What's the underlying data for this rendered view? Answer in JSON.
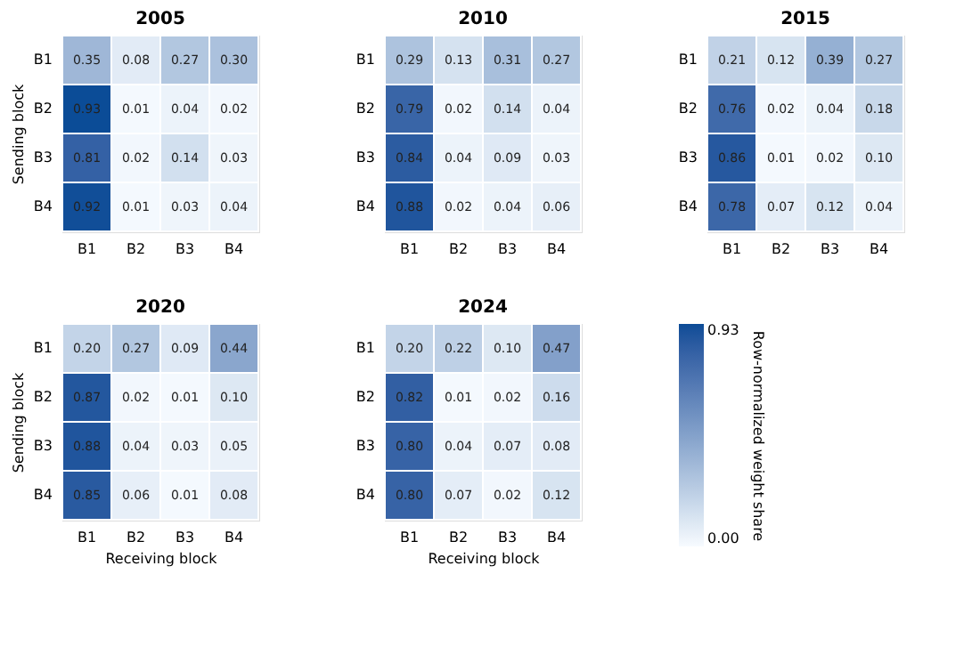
{
  "chart_data": [
    {
      "type": "heatmap",
      "title": "2005",
      "ylabel": "Sending block",
      "categories": [
        "B1",
        "B2",
        "B3",
        "B4"
      ],
      "y_categories": [
        "B1",
        "B2",
        "B3",
        "B4"
      ],
      "cells": [
        [
          0.35,
          0.08,
          0.27,
          0.3
        ],
        [
          0.93,
          0.01,
          0.04,
          0.02
        ],
        [
          0.81,
          0.02,
          0.14,
          0.03
        ],
        [
          0.92,
          0.01,
          0.03,
          0.04
        ]
      ],
      "cell_labels": [
        [
          "0.35",
          "0.08",
          "0.27",
          "0.30"
        ],
        [
          "0.93",
          "0.01",
          "0.04",
          "0.02"
        ],
        [
          "0.81",
          "0.02",
          "0.14",
          "0.03"
        ],
        [
          "0.92",
          "0.01",
          "0.03",
          "0.04"
        ]
      ]
    },
    {
      "type": "heatmap",
      "title": "2010",
      "categories": [
        "B1",
        "B2",
        "B3",
        "B4"
      ],
      "y_categories": [
        "B1",
        "B2",
        "B3",
        "B4"
      ],
      "cells": [
        [
          0.29,
          0.13,
          0.31,
          0.27
        ],
        [
          0.79,
          0.02,
          0.14,
          0.04
        ],
        [
          0.84,
          0.04,
          0.09,
          0.03
        ],
        [
          0.88,
          0.02,
          0.04,
          0.06
        ]
      ],
      "cell_labels": [
        [
          "0.29",
          "0.13",
          "0.31",
          "0.27"
        ],
        [
          "0.79",
          "0.02",
          "0.14",
          "0.04"
        ],
        [
          "0.84",
          "0.04",
          "0.09",
          "0.03"
        ],
        [
          "0.88",
          "0.02",
          "0.04",
          "0.06"
        ]
      ]
    },
    {
      "type": "heatmap",
      "title": "2015",
      "categories": [
        "B1",
        "B2",
        "B3",
        "B4"
      ],
      "y_categories": [
        "B1",
        "B2",
        "B3",
        "B4"
      ],
      "cells": [
        [
          0.21,
          0.12,
          0.39,
          0.27
        ],
        [
          0.76,
          0.02,
          0.04,
          0.18
        ],
        [
          0.86,
          0.01,
          0.02,
          0.1
        ],
        [
          0.78,
          0.07,
          0.12,
          0.04
        ]
      ],
      "cell_labels": [
        [
          "0.21",
          "0.12",
          "0.39",
          "0.27"
        ],
        [
          "0.76",
          "0.02",
          "0.04",
          "0.18"
        ],
        [
          "0.86",
          "0.01",
          "0.02",
          "0.10"
        ],
        [
          "0.78",
          "0.07",
          "0.12",
          "0.04"
        ]
      ]
    },
    {
      "type": "heatmap",
      "title": "2020",
      "ylabel": "Sending block",
      "xlabel": "Receiving block",
      "categories": [
        "B1",
        "B2",
        "B3",
        "B4"
      ],
      "y_categories": [
        "B1",
        "B2",
        "B3",
        "B4"
      ],
      "cells": [
        [
          0.2,
          0.27,
          0.09,
          0.44
        ],
        [
          0.87,
          0.02,
          0.01,
          0.1
        ],
        [
          0.88,
          0.04,
          0.03,
          0.05
        ],
        [
          0.85,
          0.06,
          0.01,
          0.08
        ]
      ],
      "cell_labels": [
        [
          "0.20",
          "0.27",
          "0.09",
          "0.44"
        ],
        [
          "0.87",
          "0.02",
          "0.01",
          "0.10"
        ],
        [
          "0.88",
          "0.04",
          "0.03",
          "0.05"
        ],
        [
          "0.85",
          "0.06",
          "0.01",
          "0.08"
        ]
      ]
    },
    {
      "type": "heatmap",
      "title": "2024",
      "xlabel": "Receiving block",
      "categories": [
        "B1",
        "B2",
        "B3",
        "B4"
      ],
      "y_categories": [
        "B1",
        "B2",
        "B3",
        "B4"
      ],
      "cells": [
        [
          0.2,
          0.22,
          0.1,
          0.47
        ],
        [
          0.82,
          0.01,
          0.02,
          0.16
        ],
        [
          0.8,
          0.04,
          0.07,
          0.08
        ],
        [
          0.8,
          0.07,
          0.02,
          0.12
        ]
      ],
      "cell_labels": [
        [
          "0.20",
          "0.22",
          "0.10",
          "0.47"
        ],
        [
          "0.82",
          "0.01",
          "0.02",
          "0.16"
        ],
        [
          "0.80",
          "0.04",
          "0.07",
          "0.08"
        ],
        [
          "0.80",
          "0.07",
          "0.02",
          "0.12"
        ]
      ],
      "clim": [
        0,
        0.93
      ],
      "clabel": "Row-normalized weight share",
      "cticks": [
        {
          "value": 0,
          "label": "0.00"
        },
        {
          "value": 0.93,
          "label": "0.93"
        }
      ]
    }
  ]
}
